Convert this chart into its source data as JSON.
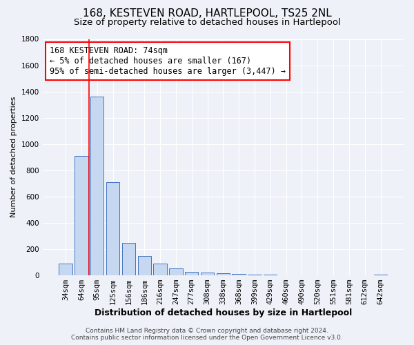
{
  "title": "168, KESTEVEN ROAD, HARTLEPOOL, TS25 2NL",
  "subtitle": "Size of property relative to detached houses in Hartlepool",
  "xlabel": "Distribution of detached houses by size in Hartlepool",
  "ylabel": "Number of detached properties",
  "bar_labels": [
    "34sqm",
    "64sqm",
    "95sqm",
    "125sqm",
    "156sqm",
    "186sqm",
    "216sqm",
    "247sqm",
    "277sqm",
    "308sqm",
    "338sqm",
    "368sqm",
    "399sqm",
    "429sqm",
    "460sqm",
    "490sqm",
    "520sqm",
    "551sqm",
    "581sqm",
    "612sqm",
    "642sqm"
  ],
  "bar_values": [
    90,
    910,
    1360,
    710,
    250,
    145,
    90,
    55,
    25,
    20,
    18,
    10,
    5,
    5,
    0,
    0,
    0,
    0,
    0,
    0,
    5
  ],
  "bar_color": "#c5d8f0",
  "bar_edge_color": "#4472c4",
  "ylim": [
    0,
    1800
  ],
  "yticks": [
    0,
    200,
    400,
    600,
    800,
    1000,
    1200,
    1400,
    1600,
    1800
  ],
  "red_line_x": 1.5,
  "annotation_title": "168 KESTEVEN ROAD: 74sqm",
  "annotation_line1": "← 5% of detached houses are smaller (167)",
  "annotation_line2": "95% of semi-detached houses are larger (3,447) →",
  "footer_line1": "Contains HM Land Registry data © Crown copyright and database right 2024.",
  "footer_line2": "Contains public sector information licensed under the Open Government Licence v3.0.",
  "background_color": "#eef2f8",
  "grid_color": "#ffffff",
  "title_fontsize": 11,
  "subtitle_fontsize": 9.5,
  "xlabel_fontsize": 9,
  "ylabel_fontsize": 8,
  "tick_fontsize": 7.5,
  "footer_fontsize": 6.5,
  "annotation_fontsize": 8.5
}
